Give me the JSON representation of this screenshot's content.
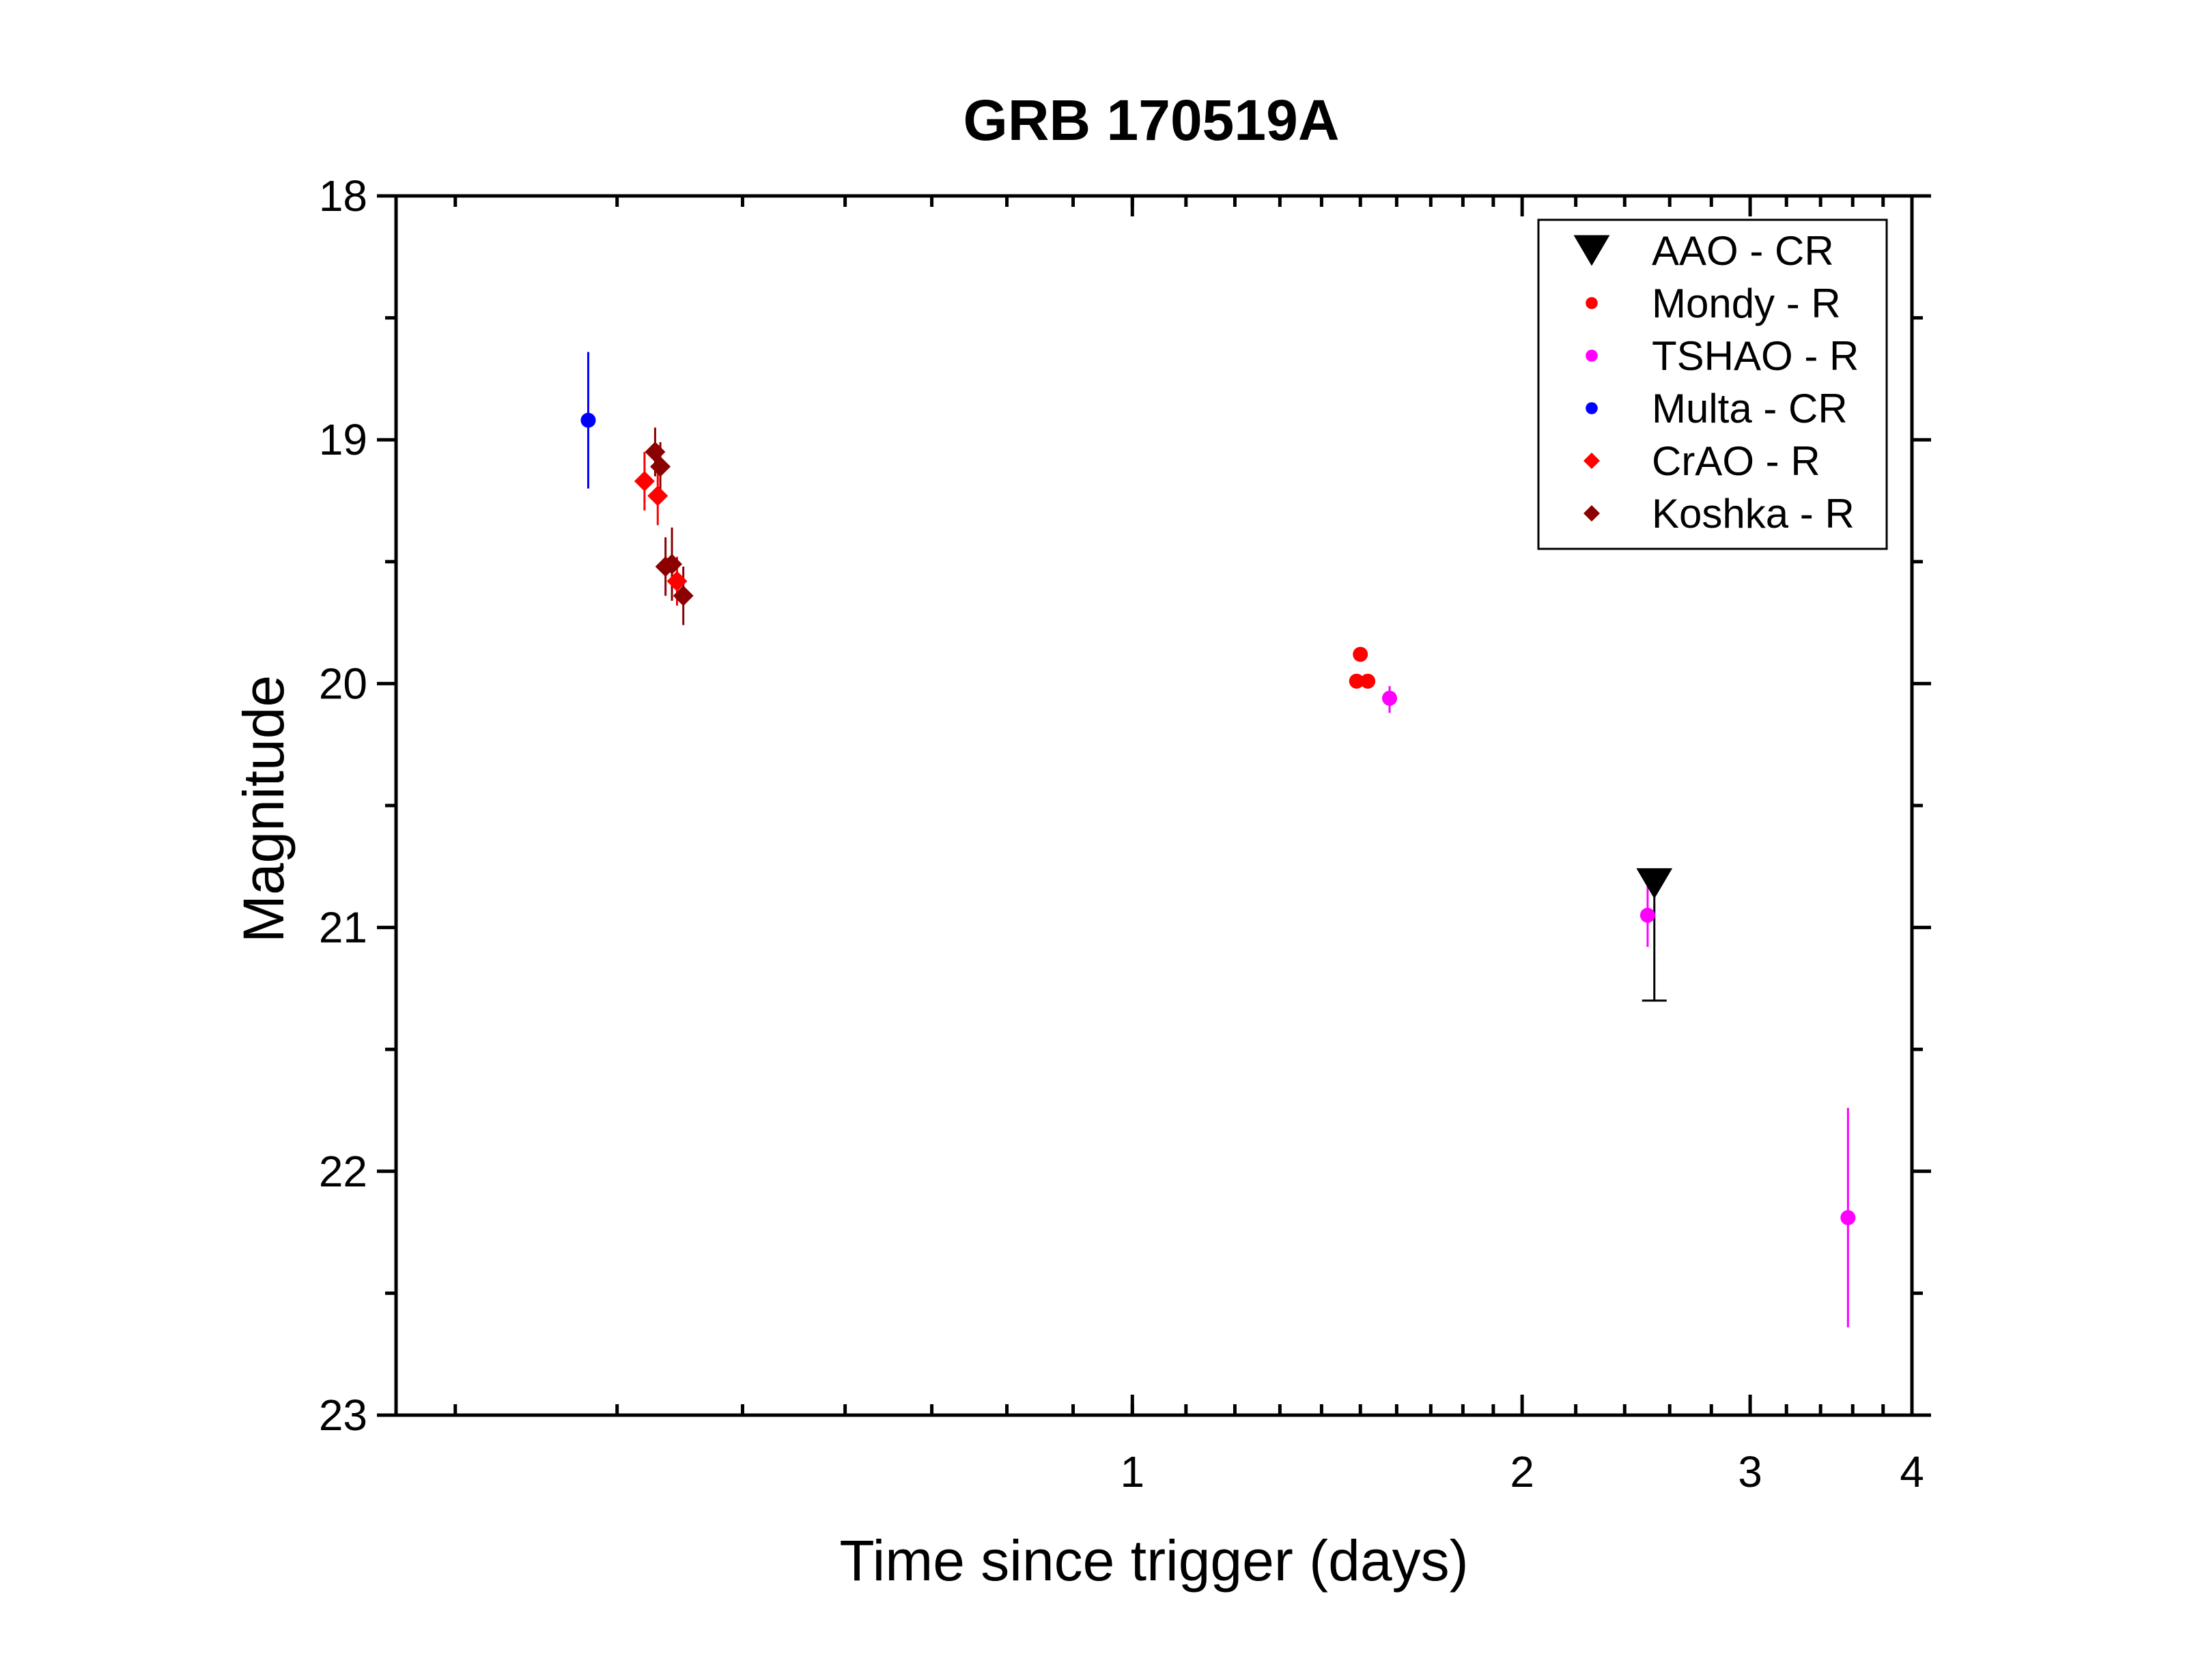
{
  "chart_data": {
    "type": "scatter",
    "title": "GRB 170519A",
    "xlabel": "Time since trigger (days)",
    "ylabel": "Magnitude",
    "x_scale": "log",
    "xlim": [
      0.27,
      4.0
    ],
    "ylim": [
      18,
      23
    ],
    "y_inverted": true,
    "x_ticks": [
      1,
      2,
      3,
      4
    ],
    "x_tick_labels": [
      "1",
      "2",
      "3",
      "4"
    ],
    "y_ticks": [
      18,
      19,
      20,
      21,
      22,
      23
    ],
    "y_tick_labels": [
      "18",
      "19",
      "20",
      "21",
      "22",
      "23"
    ],
    "grid": false,
    "legend_position": "top-right",
    "series": [
      {
        "name": "AAO - CR",
        "marker": "triangle-down",
        "color": "#000000",
        "points": [
          {
            "x": 2.53,
            "y": 20.82,
            "yerr_low": 0.0,
            "yerr_high": 0.48
          }
        ]
      },
      {
        "name": "Mondy - R",
        "marker": "circle",
        "color": "#ff0000",
        "points": [
          {
            "x": 1.5,
            "y": 19.88
          },
          {
            "x": 1.49,
            "y": 19.99
          },
          {
            "x": 1.52,
            "y": 19.99
          }
        ]
      },
      {
        "name": "TSHAO - R",
        "marker": "circle",
        "color": "#ff00ff",
        "points": [
          {
            "x": 1.58,
            "y": 20.06,
            "yerr_low": 0.05,
            "yerr_high": 0.06
          },
          {
            "x": 2.5,
            "y": 20.95,
            "yerr_low": 0.12,
            "yerr_high": 0.13
          },
          {
            "x": 3.57,
            "y": 22.19,
            "yerr_low": 0.45,
            "yerr_high": 0.45
          }
        ]
      },
      {
        "name": "Multa - CR",
        "marker": "circle",
        "color": "#0000ff",
        "points": [
          {
            "x": 0.38,
            "y": 18.92,
            "yerr_low": 0.28,
            "yerr_high": 0.28
          }
        ]
      },
      {
        "name": "CrAO - R",
        "marker": "diamond",
        "color": "#ff0000",
        "points": [
          {
            "x": 0.42,
            "y": 19.17,
            "yerr_low": 0.12,
            "yerr_high": 0.12
          },
          {
            "x": 0.43,
            "y": 19.23,
            "yerr_low": 0.12,
            "yerr_high": 0.12
          },
          {
            "x": 0.445,
            "y": 19.58,
            "yerr_low": 0.1,
            "yerr_high": 0.1
          }
        ]
      },
      {
        "name": "Koshka - R",
        "marker": "diamond",
        "color": "#8b0000",
        "points": [
          {
            "x": 0.428,
            "y": 19.05,
            "yerr_low": 0.1,
            "yerr_high": 0.1
          },
          {
            "x": 0.432,
            "y": 19.11,
            "yerr_low": 0.1,
            "yerr_high": 0.1
          },
          {
            "x": 0.436,
            "y": 19.52,
            "yerr_low": 0.12,
            "yerr_high": 0.12
          },
          {
            "x": 0.441,
            "y": 19.51,
            "yerr_low": 0.15,
            "yerr_high": 0.15
          },
          {
            "x": 0.45,
            "y": 19.64,
            "yerr_low": 0.12,
            "yerr_high": 0.12
          }
        ]
      }
    ]
  }
}
